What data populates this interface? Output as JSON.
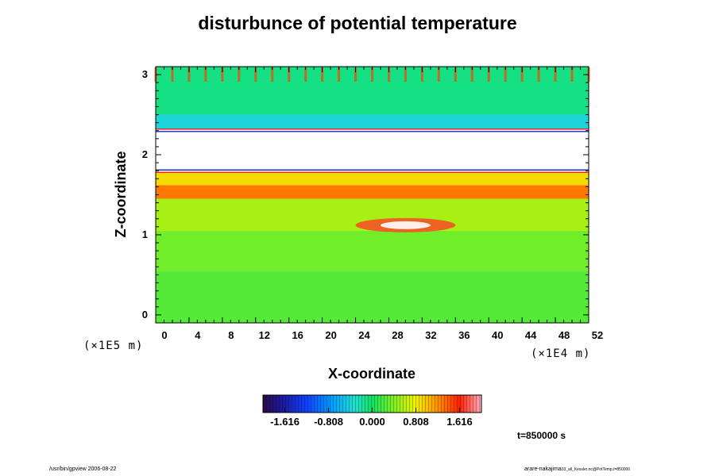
{
  "chart_data": {
    "type": "heatmap",
    "title": "disturbunce of potential temperature",
    "xlabel": "X-coordinate",
    "ylabel": "Z-coordinate",
    "x_scale_note": "(×1E4 m)",
    "y_scale_note": "(×1E5 m)",
    "xlim": [
      0,
      52
    ],
    "ylim": [
      -0.1,
      3.1
    ],
    "x_ticks": [
      0,
      4,
      8,
      12,
      16,
      20,
      24,
      28,
      32,
      36,
      40,
      44,
      48,
      52
    ],
    "y_ticks": [
      0,
      1,
      2,
      3
    ],
    "colorbar": {
      "range": [
        -2.02,
        2.02
      ],
      "tick_values": [
        -1.616,
        -0.808,
        0.0,
        0.808,
        1.616
      ],
      "tick_labels": [
        "-1.616",
        "-0.808",
        "0.000",
        "0.808",
        "1.616"
      ]
    },
    "time_label": "t=850000 s",
    "regions": [
      {
        "z": [
          -0.1,
          0.55
        ],
        "value": 0.25
      },
      {
        "z": [
          0.55,
          1.05
        ],
        "value": 0.35
      },
      {
        "z": [
          1.05,
          1.45
        ],
        "value": 0.55
      },
      {
        "z": [
          1.45,
          1.62
        ],
        "value": 1.3
      },
      {
        "z": [
          1.62,
          1.78
        ],
        "value": 0.9
      },
      {
        "z": [
          1.78,
          2.32
        ],
        "value": "saturated"
      },
      {
        "z": [
          2.32,
          2.5
        ],
        "value": -0.4
      },
      {
        "z": [
          2.5,
          3.1
        ],
        "value": -0.1
      }
    ]
  },
  "footer": {
    "left": "/usr/bin/gpview 2006-08-22",
    "right_main": "arare-nakajima",
    "right_small": "03_all_Kessler.nc@PotTemp,t=850000"
  }
}
